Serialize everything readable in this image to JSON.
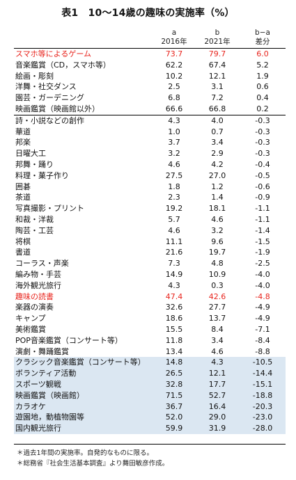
{
  "title": "表1　10〜14歳の趣味の実施率（%）",
  "header": {
    "a_label": "a",
    "a_year": "2016年",
    "b_label": "b",
    "b_year": "2021年",
    "diff_label": "b−a",
    "diff_unit": "差分"
  },
  "rows": [
    {
      "label": "スマホ等によるゲーム",
      "a": "73.7",
      "b": "79.7",
      "d": "6.0"
    },
    {
      "label": "音楽鑑賞（CD，スマホ等）",
      "a": "62.2",
      "b": "67.4",
      "d": "5.2"
    },
    {
      "label": "絵画・彫刻",
      "a": "10.2",
      "b": "12.1",
      "d": "1.9"
    },
    {
      "label": "洋舞・社交ダンス",
      "a": "2.5",
      "b": "3.1",
      "d": "0.6"
    },
    {
      "label": "園芸・ガーデニング",
      "a": "6.8",
      "b": "7.2",
      "d": "0.4"
    },
    {
      "label": "映画鑑賞（映画館以外）",
      "a": "66.6",
      "b": "66.8",
      "d": "0.2"
    },
    {
      "label": "詩・小説などの創作",
      "a": "4.3",
      "b": "4.0",
      "d": "-0.3"
    },
    {
      "label": "華道",
      "a": "1.0",
      "b": "0.7",
      "d": "-0.3"
    },
    {
      "label": "邦楽",
      "a": "3.7",
      "b": "3.4",
      "d": "-0.3"
    },
    {
      "label": "日曜大工",
      "a": "3.2",
      "b": "2.9",
      "d": "-0.3"
    },
    {
      "label": "邦舞・踊り",
      "a": "4.6",
      "b": "4.2",
      "d": "-0.4"
    },
    {
      "label": "料理・菓子作り",
      "a": "27.5",
      "b": "27.0",
      "d": "-0.5"
    },
    {
      "label": "囲碁",
      "a": "1.8",
      "b": "1.2",
      "d": "-0.6"
    },
    {
      "label": "茶道",
      "a": "2.3",
      "b": "1.4",
      "d": "-0.9"
    },
    {
      "label": "写真撮影・プリント",
      "a": "19.2",
      "b": "18.1",
      "d": "-1.1"
    },
    {
      "label": "和裁・洋裁",
      "a": "5.7",
      "b": "4.6",
      "d": "-1.1"
    },
    {
      "label": "陶芸・工芸",
      "a": "4.6",
      "b": "3.2",
      "d": "-1.4"
    },
    {
      "label": "将棋",
      "a": "11.1",
      "b": "9.6",
      "d": "-1.5"
    },
    {
      "label": "書道",
      "a": "21.6",
      "b": "19.7",
      "d": "-1.9"
    },
    {
      "label": "コーラス・声楽",
      "a": "7.3",
      "b": "4.8",
      "d": "-2.5"
    },
    {
      "label": "編み物・手芸",
      "a": "14.9",
      "b": "10.9",
      "d": "-4.0"
    },
    {
      "label": "海外観光旅行",
      "a": "4.3",
      "b": "0.3",
      "d": "-4.0"
    },
    {
      "label": "趣味の読書",
      "a": "47.4",
      "b": "42.6",
      "d": "-4.8"
    },
    {
      "label": "楽器の演奏",
      "a": "32.6",
      "b": "27.7",
      "d": "-4.9"
    },
    {
      "label": "キャンプ",
      "a": "18.6",
      "b": "13.7",
      "d": "-4.9"
    },
    {
      "label": "美術鑑賞",
      "a": "15.5",
      "b": "8.4",
      "d": "-7.1"
    },
    {
      "label": "POP音楽鑑賞（コンサート等）",
      "a": "11.8",
      "b": "3.4",
      "d": "-8.4"
    },
    {
      "label": "演劇・舞踊鑑賞",
      "a": "13.4",
      "b": "4.6",
      "d": "-8.8"
    },
    {
      "label": "クラシック音楽鑑賞（コンサート等）",
      "a": "14.8",
      "b": "4.3",
      "d": "-10.5"
    },
    {
      "label": "ボランティア活動",
      "a": "26.5",
      "b": "12.1",
      "d": "-14.4"
    },
    {
      "label": "スポーツ観戦",
      "a": "32.8",
      "b": "17.7",
      "d": "-15.1"
    },
    {
      "label": "映画鑑賞（映画館）",
      "a": "71.5",
      "b": "52.7",
      "d": "-18.8"
    },
    {
      "label": "カラオケ",
      "a": "36.7",
      "b": "16.4",
      "d": "-20.3"
    },
    {
      "label": "遊園地，動植物園等",
      "a": "52.0",
      "b": "29.0",
      "d": "-23.0"
    },
    {
      "label": "国内観光旅行",
      "a": "59.9",
      "b": "31.9",
      "d": "-28.0"
    }
  ],
  "notes": {
    "note1": "＊過去1年間の実施率。自発的なものに限る。",
    "note2": "＊総務省『社会生活基本調査』より舞田敏彦作成。"
  },
  "colors": {
    "highlight_text": "#e8241d",
    "shaded_rows": "#dbe7f2"
  }
}
